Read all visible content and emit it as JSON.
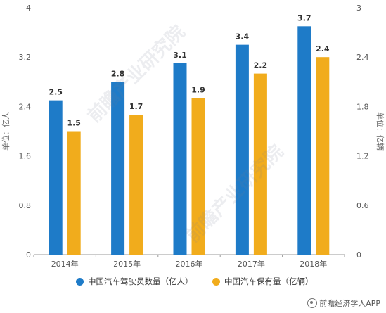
{
  "chart_data": {
    "type": "bar",
    "categories": [
      "2014年",
      "2015年",
      "2016年",
      "2017年",
      "2018年"
    ],
    "series": [
      {
        "name": "中国汽车驾驶员数量（亿人）",
        "values": [
          2.5,
          2.8,
          3.1,
          3.4,
          3.7
        ],
        "color": "#1e7bc8",
        "axis": "left"
      },
      {
        "name": "中国汽车保有量（亿辆）",
        "values": [
          1.5,
          1.7,
          1.9,
          2.2,
          2.4
        ],
        "color": "#f1ac1c",
        "axis": "right"
      }
    ],
    "y_left": {
      "label": "单位：亿人",
      "ylim": [
        0,
        4
      ],
      "ticks": [
        "0",
        "0.8",
        "1.6",
        "2.4",
        "3.2",
        "4"
      ]
    },
    "y_right": {
      "label": "单位：亿辆",
      "ylim": [
        0,
        3
      ],
      "ticks": [
        "0",
        "0.6",
        "1.2",
        "1.8",
        "2.4",
        "3"
      ]
    },
    "grid": false,
    "legend_position": "bottom"
  },
  "source_text": "前瞻经济学人APP",
  "watermark_text": "前瞻产业研究院"
}
